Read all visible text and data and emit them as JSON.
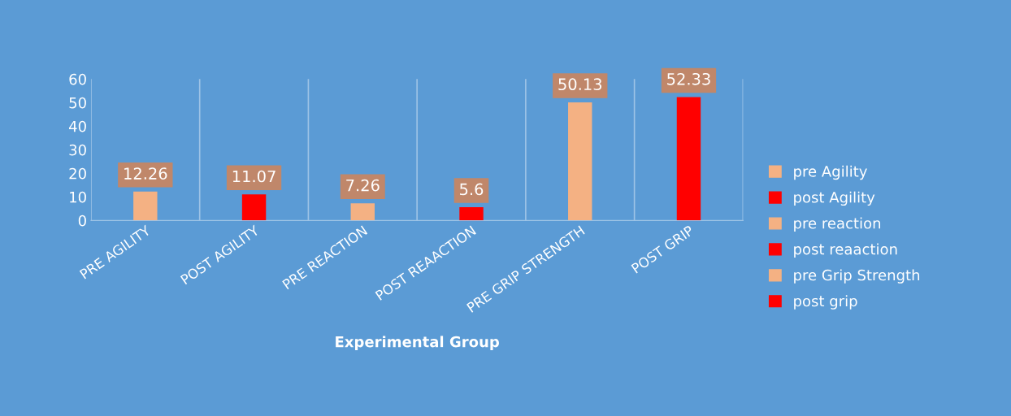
{
  "chart_data": {
    "type": "bar",
    "xlabel": "Experimental Group",
    "categories": [
      "PRE AGILITY",
      "POST AGILITY",
      "PRE REACTION",
      "POST REAACTION",
      "PRE GRIP STRENGTH",
      "POST GRIP"
    ],
    "series": [
      {
        "name": "pre Agility",
        "color": "#f4b183",
        "values": [
          12.26,
          null,
          null,
          null,
          null,
          null
        ]
      },
      {
        "name": "post Agility",
        "color": "#ff0000",
        "values": [
          null,
          11.07,
          null,
          null,
          null,
          null
        ]
      },
      {
        "name": "pre reaction",
        "color": "#f4b183",
        "values": [
          null,
          null,
          7.26,
          null,
          null,
          null
        ]
      },
      {
        "name": "post reaaction",
        "color": "#ff0000",
        "values": [
          null,
          null,
          null,
          5.6,
          null,
          null
        ]
      },
      {
        "name": "pre Grip Strength",
        "color": "#f4b183",
        "values": [
          null,
          null,
          null,
          null,
          50.13,
          null
        ]
      },
      {
        "name": "post grip",
        "color": "#ff0000",
        "values": [
          null,
          null,
          null,
          null,
          null,
          52.33
        ]
      }
    ],
    "ylim": [
      0,
      60
    ],
    "yticks": [
      0,
      10,
      20,
      30,
      40,
      50,
      60
    ],
    "grid": "x",
    "legend": "right",
    "data_labels": true
  }
}
